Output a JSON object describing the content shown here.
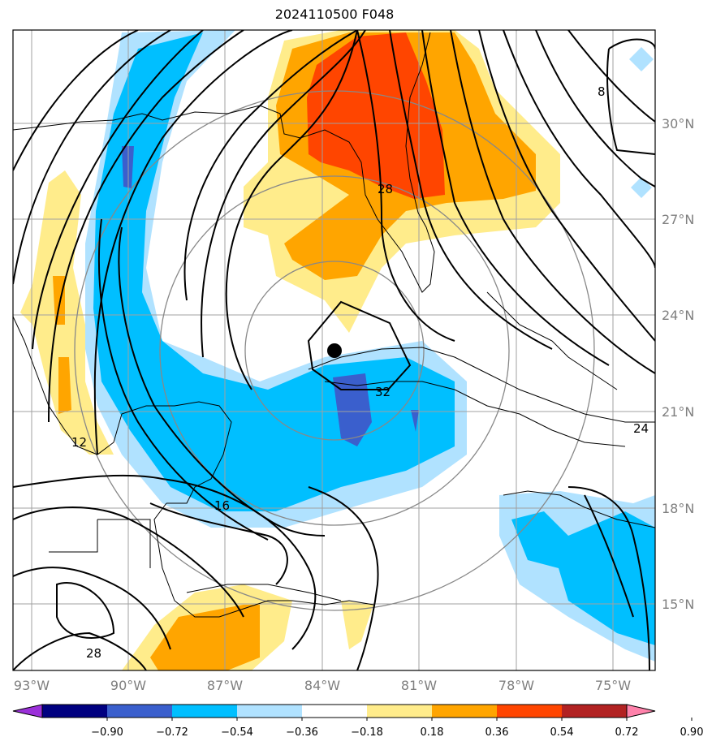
{
  "title": "2024110500 F048",
  "map": {
    "lon_range": [
      -94,
      -73
    ],
    "lat_range": [
      12.8,
      32.9
    ],
    "lon_ticks": [
      "93°W",
      "90°W",
      "87°W",
      "84°W",
      "81°W",
      "78°W",
      "75°W"
    ],
    "lat_ticks": [
      "15°N",
      "18°N",
      "21°N",
      "24°N",
      "27°N",
      "30°N"
    ],
    "storm_center": {
      "lon": -83.3,
      "lat": 22.9
    },
    "contour_labels": [
      "12",
      "16",
      "28",
      "32",
      "24",
      "8",
      "28"
    ]
  },
  "colorbar": {
    "ticks": [
      "−0.90",
      "−0.72",
      "−0.54",
      "−0.36",
      "−0.18",
      "0.18",
      "0.36",
      "0.54",
      "0.72",
      "0.90"
    ],
    "colors": [
      "#9b30d9",
      "#000080",
      "#3a5fcd",
      "#00bfff",
      "#b0e2ff",
      "#ffffff",
      "#ffec8b",
      "#ffa500",
      "#ff4500",
      "#b22222",
      "#ff82ab"
    ]
  }
}
